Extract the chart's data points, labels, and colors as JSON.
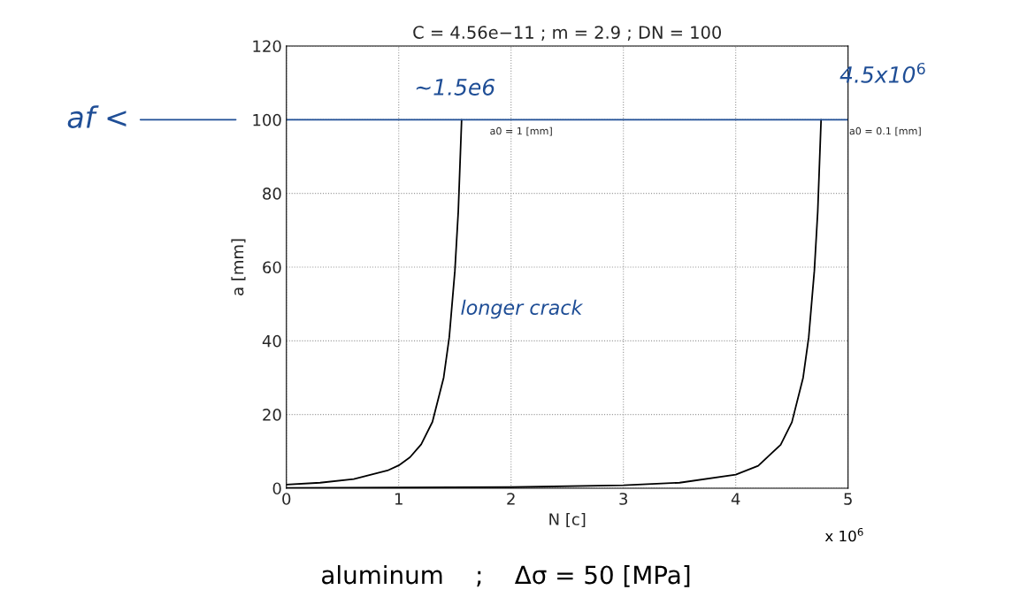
{
  "chart_data": {
    "type": "line",
    "title": "C = 4.56e−11 ; m = 2.9 ; DN = 100",
    "xlabel": "N [c]",
    "ylabel": "a [mm]",
    "series": [
      {
        "name": "a0 = 1 [mm]",
        "color": "#000000",
        "x": [
          0,
          0.3,
          0.6,
          0.9,
          1.0,
          1.1,
          1.2,
          1.3,
          1.4,
          1.45,
          1.5,
          1.53,
          1.56
        ],
        "values": [
          1,
          1.5,
          2.5,
          4.8,
          6.2,
          8.4,
          11.9,
          18,
          30,
          41,
          59,
          75,
          100
        ]
      },
      {
        "name": "a0 = 0.1 [mm]",
        "color": "#000000",
        "x": [
          0,
          1,
          2,
          3,
          3.5,
          4,
          4.2,
          4.4,
          4.5,
          4.6,
          4.65,
          4.7,
          4.73,
          4.76
        ],
        "values": [
          0.1,
          0.2,
          0.3,
          0.8,
          1.5,
          3.7,
          6.1,
          11.8,
          17.9,
          30,
          41,
          59,
          75,
          100
        ]
      }
    ],
    "xlim": [
      0,
      5
    ],
    "ylim": [
      0,
      120
    ],
    "xticks": [
      0,
      1,
      2,
      3,
      4,
      5
    ],
    "yticks": [
      0,
      20,
      40,
      60,
      80,
      100,
      120
    ],
    "grid": true,
    "legend": false,
    "marker": "none",
    "line_style": "solid",
    "ref_lines": [
      {
        "axis": "y",
        "value": 100,
        "label": "af <",
        "color": "#1f4e96"
      }
    ],
    "annotations": [
      {
        "text": "~1.5e6",
        "x": 1.5,
        "y": 100
      },
      {
        "text": "4.5x10$^{6}$",
        "x": 4.76,
        "y": 100
      },
      "longer crack",
      "x 10$^{6}$",
      "aluminum    ;    Δσ = 50 [MPa]"
    ]
  }
}
